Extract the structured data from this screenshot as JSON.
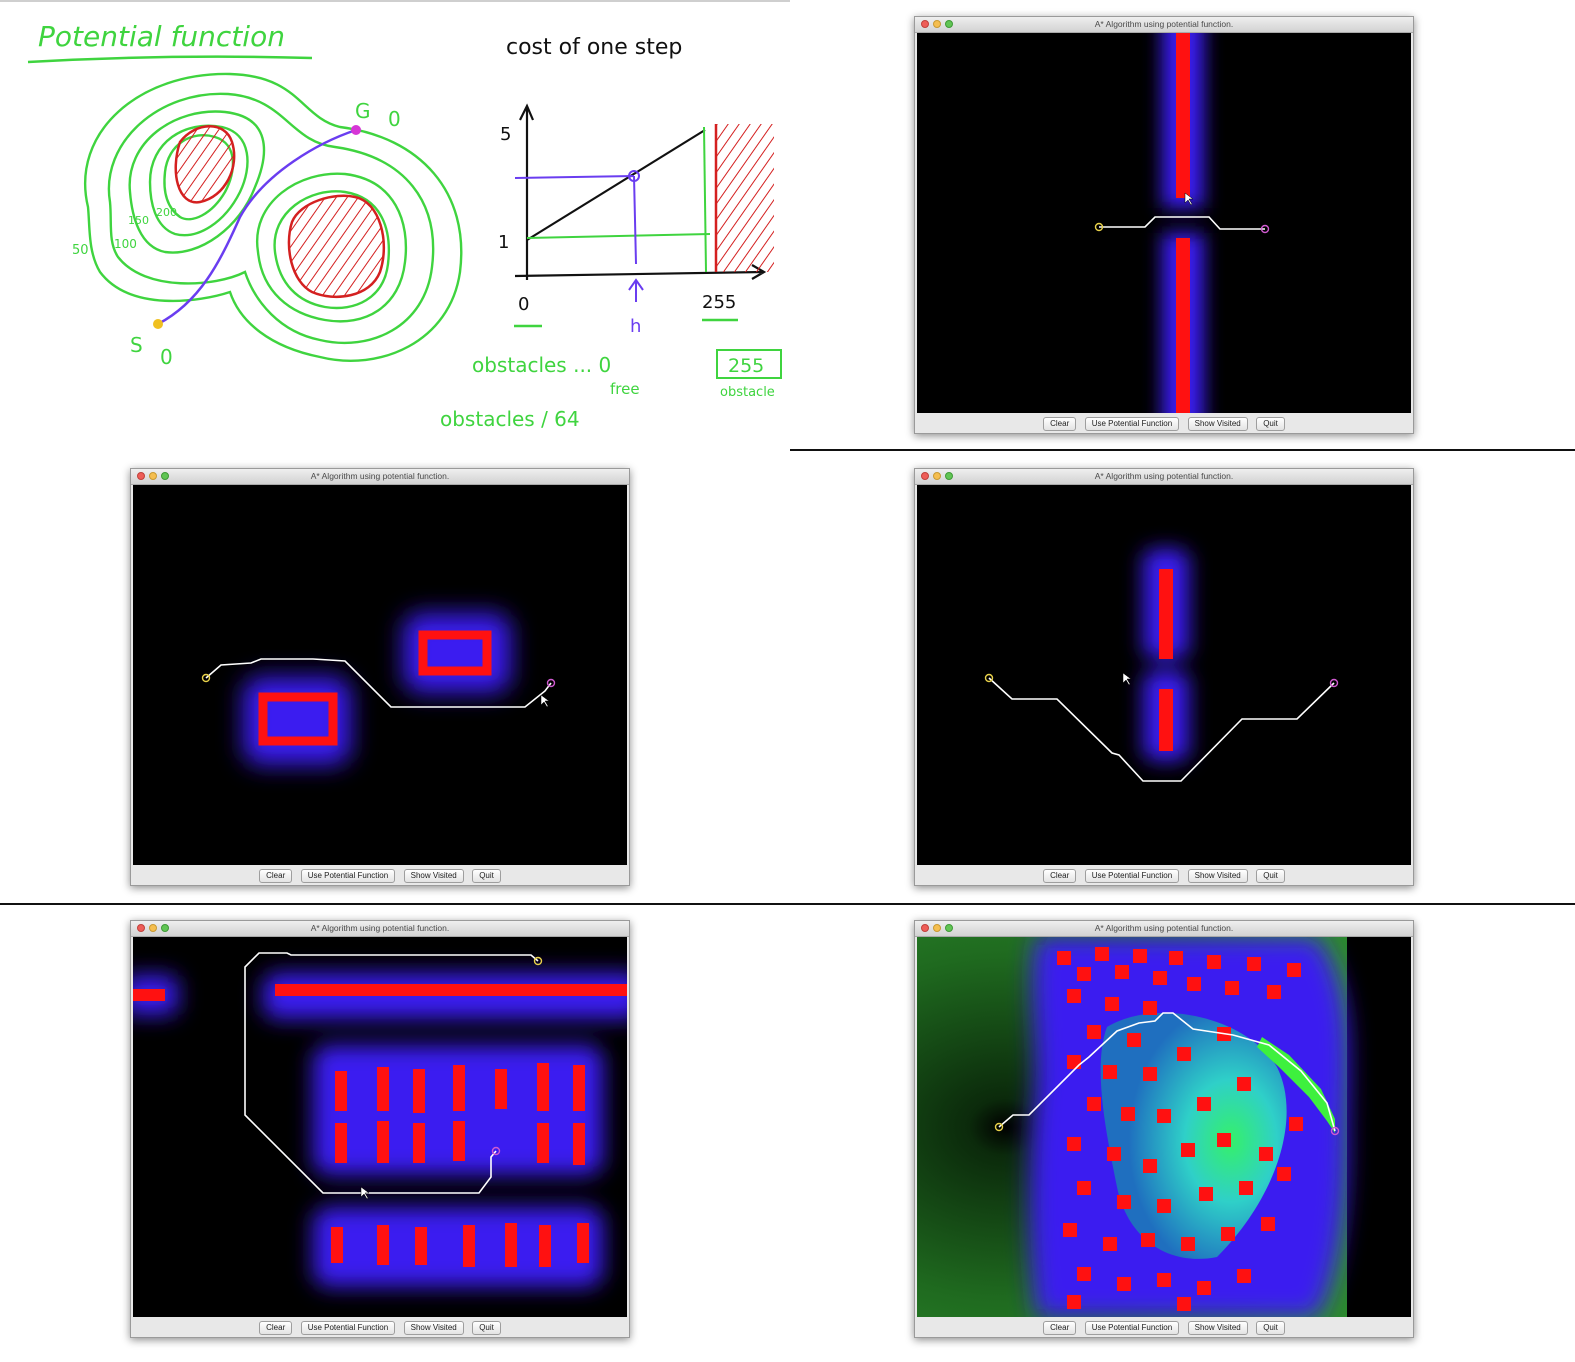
{
  "sketch": {
    "title": "Potential function",
    "graph_title": "cost of one step",
    "goal_label": "G",
    "goal_value": "0",
    "start_label": "S",
    "start_value": "0",
    "contour_labels": [
      "50",
      "100",
      "150",
      "200"
    ],
    "y_tick_top": "5",
    "y_tick_bottom": "1",
    "x_tick_left": "0",
    "x_tick_mid": "h",
    "x_tick_right": "255",
    "note_obstacles": "obstacles ... 0",
    "note_free": "free",
    "note_divide": "obstacles / 64",
    "box_value": "255",
    "box_label": "obstacle",
    "colors": {
      "contour": "#3fd43f",
      "path": "#6a3df0",
      "obstacle": "#d42020",
      "ink": "#111111"
    }
  },
  "windows": [
    {
      "title": "A* Algorithm using potential function.",
      "buttons": [
        "Clear",
        "Use Potential Function",
        "Show Visited",
        "Quit"
      ]
    },
    {
      "title": "A* Algorithm using potential function.",
      "buttons": [
        "Clear",
        "Use Potential Function",
        "Show Visited",
        "Quit"
      ]
    },
    {
      "title": "A* Algorithm using potential function.",
      "buttons": [
        "Clear",
        "Use Potential Function",
        "Show Visited",
        "Quit"
      ]
    },
    {
      "title": "A* Algorithm using potential function.",
      "buttons": [
        "Clear",
        "Use Potential Function",
        "Show Visited",
        "Quit"
      ]
    },
    {
      "title": "A* Algorithm using potential function.",
      "buttons": [
        "Clear",
        "Use Potential Function",
        "Show Visited",
        "Quit"
      ]
    }
  ],
  "icons": {
    "close": "close-button-icon",
    "minimize": "minimize-button-icon",
    "zoom": "zoom-button-icon",
    "cursor": "mouse-cursor-icon"
  }
}
